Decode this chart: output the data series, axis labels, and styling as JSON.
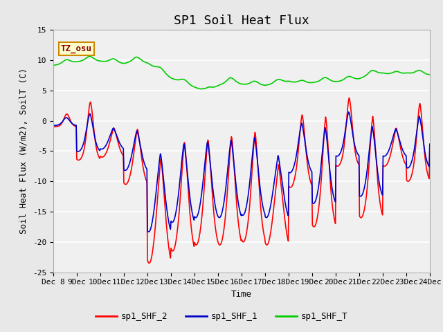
{
  "title": "SP1 Soil Heat Flux",
  "xlabel": "Time",
  "ylabel": "Soil Heat Flux (W/m2), SoilT (C)",
  "ylim": [
    -25,
    15
  ],
  "xlim_start": 8.0,
  "xlim_end": 24.0,
  "xtick_positions": [
    8,
    9,
    10,
    11,
    12,
    13,
    14,
    15,
    16,
    17,
    18,
    19,
    20,
    21,
    22,
    23,
    24
  ],
  "ytick_positions": [
    -25,
    -20,
    -15,
    -10,
    -5,
    0,
    5,
    10,
    15
  ],
  "color_shf2": "#ff0000",
  "color_shf1": "#0000cc",
  "color_shft": "#00cc00",
  "legend_label_shf2": "sp1_SHF_2",
  "legend_label_shf1": "sp1_SHF_1",
  "legend_label_shft": "sp1_SHF_T",
  "tz_label": "TZ_osu",
  "bg_color": "#e8e8e8",
  "plot_bg_color": "#f0f0f0",
  "title_fontsize": 13,
  "axis_label_fontsize": 9,
  "tick_fontsize": 8,
  "legend_fontsize": 9,
  "linewidth": 1.2
}
